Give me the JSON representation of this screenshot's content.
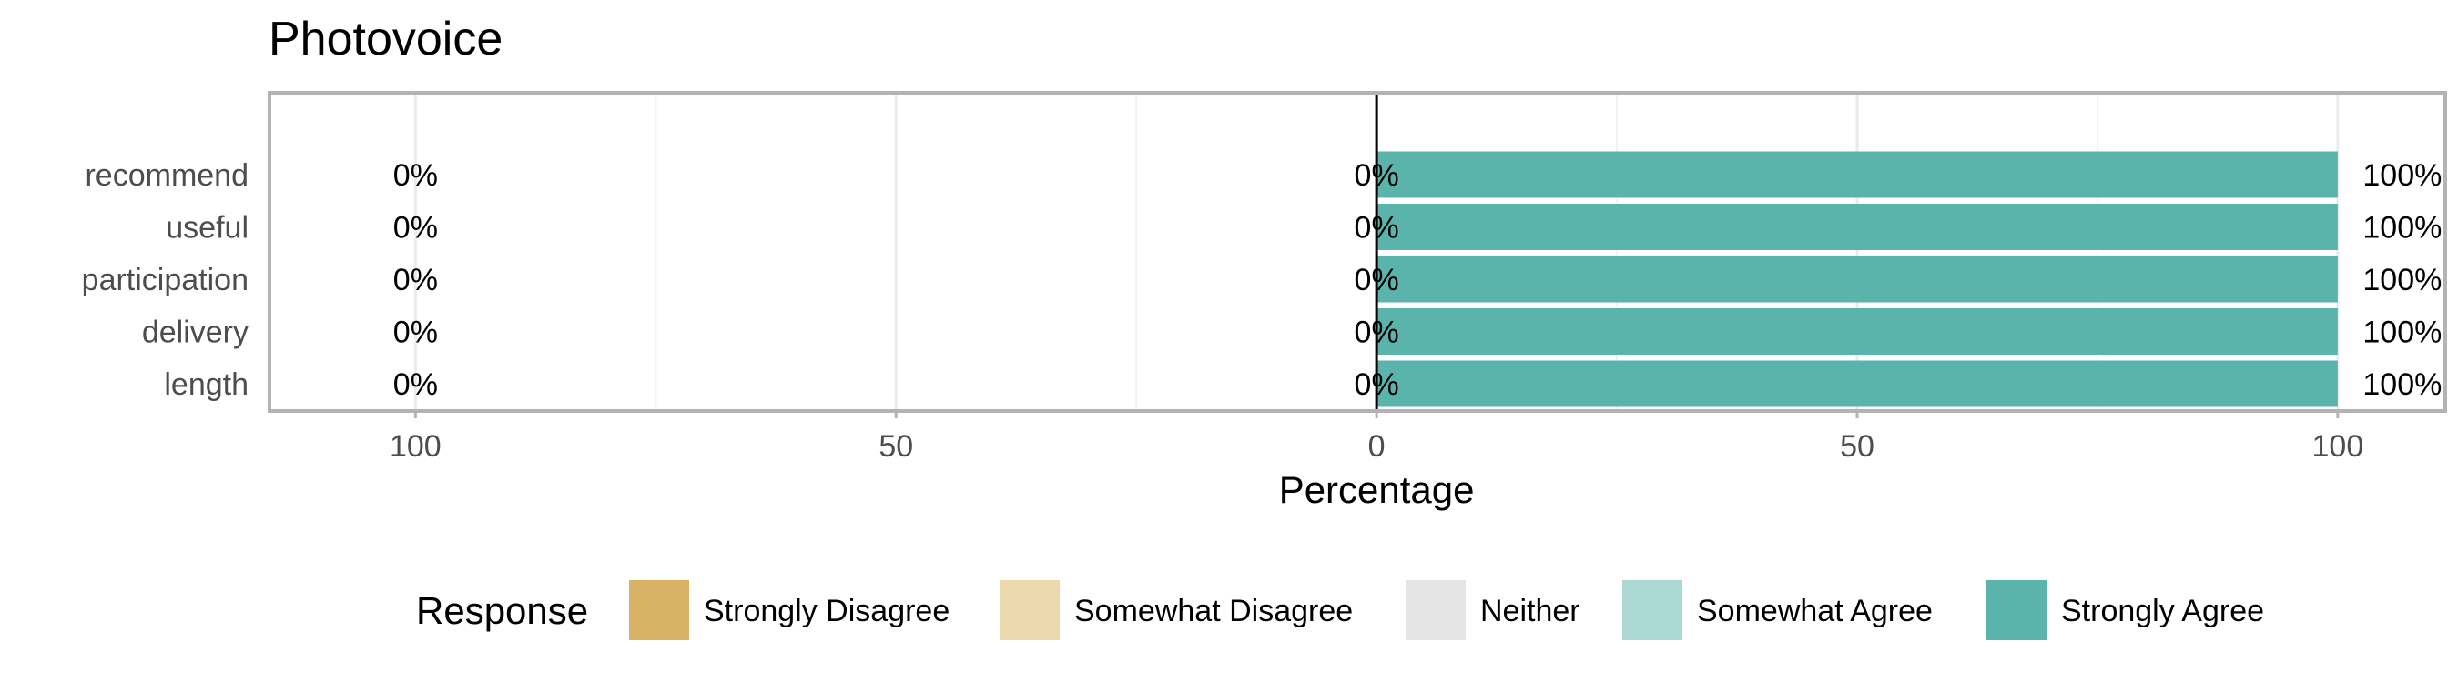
{
  "chart_data": {
    "type": "bar",
    "orientation": "horizontal-diverging",
    "title": "Photovoice",
    "xlabel": "Percentage",
    "ylabel": "",
    "xlim": [
      -115,
      111
    ],
    "x_ticks": [
      {
        "value": -100,
        "label": "100"
      },
      {
        "value": -50,
        "label": "50"
      },
      {
        "value": 0,
        "label": "0"
      },
      {
        "value": 50,
        "label": "50"
      },
      {
        "value": 100,
        "label": "100"
      }
    ],
    "categories": [
      "recommend",
      "useful",
      "participation",
      "delivery",
      "length"
    ],
    "series": [
      {
        "name": "Strongly Disagree",
        "color": "#D8B365",
        "values": [
          0,
          0,
          0,
          0,
          0
        ]
      },
      {
        "name": "Somewhat Disagree",
        "color": "#EDD9AE",
        "values": [
          0,
          0,
          0,
          0,
          0
        ]
      },
      {
        "name": "Neither",
        "color": "#E5E5E5",
        "values": [
          0,
          0,
          0,
          0,
          0
        ]
      },
      {
        "name": "Somewhat Agree",
        "color": "#ACD9D4",
        "values": [
          0,
          0,
          0,
          0,
          0
        ]
      },
      {
        "name": "Strongly Agree",
        "color": "#5AB4AC",
        "values": [
          100,
          100,
          100,
          100,
          100
        ]
      }
    ],
    "labels": {
      "left": [
        "0%",
        "0%",
        "0%",
        "0%",
        "0%"
      ],
      "center": [
        "0%",
        "0%",
        "0%",
        "0%",
        "0%"
      ],
      "right": [
        "100%",
        "100%",
        "100%",
        "100%",
        "100%"
      ]
    },
    "legend": {
      "title": "Response",
      "position": "bottom"
    },
    "grid": true
  }
}
